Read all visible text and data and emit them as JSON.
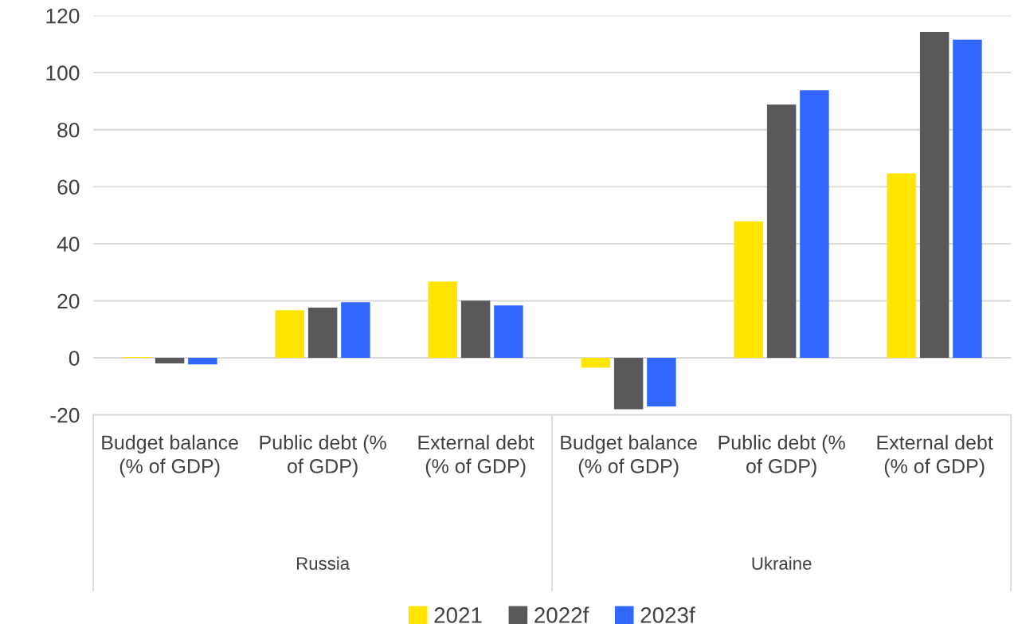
{
  "chart_data": {
    "type": "bar",
    "categories": [
      "Budget balance (% of GDP)",
      "Public debt (% of GDP)",
      "External debt (% of GDP)",
      "Budget balance (% of GDP)",
      "Public debt (% of GDP)",
      "External debt (% of GDP)"
    ],
    "series": [
      {
        "name": "2021",
        "color": "#ffe500",
        "values": [
          0.3,
          16.7,
          26.8,
          -3.4,
          47.9,
          64.7
        ]
      },
      {
        "name": "2022f",
        "color": "#595959",
        "values": [
          -1.9,
          17.6,
          20.1,
          -18.0,
          88.8,
          114.3
        ]
      },
      {
        "name": "2023f",
        "color": "#3366ff",
        "values": [
          -2.3,
          19.5,
          18.4,
          -17.0,
          93.8,
          111.6
        ]
      }
    ],
    "annotations": [
      "Russia",
      "Ukraine"
    ],
    "ylim": [
      -20,
      120
    ],
    "yticks": [
      -20,
      0,
      20,
      40,
      60,
      80,
      100,
      120
    ],
    "grid": "y",
    "legend": "bottom"
  }
}
